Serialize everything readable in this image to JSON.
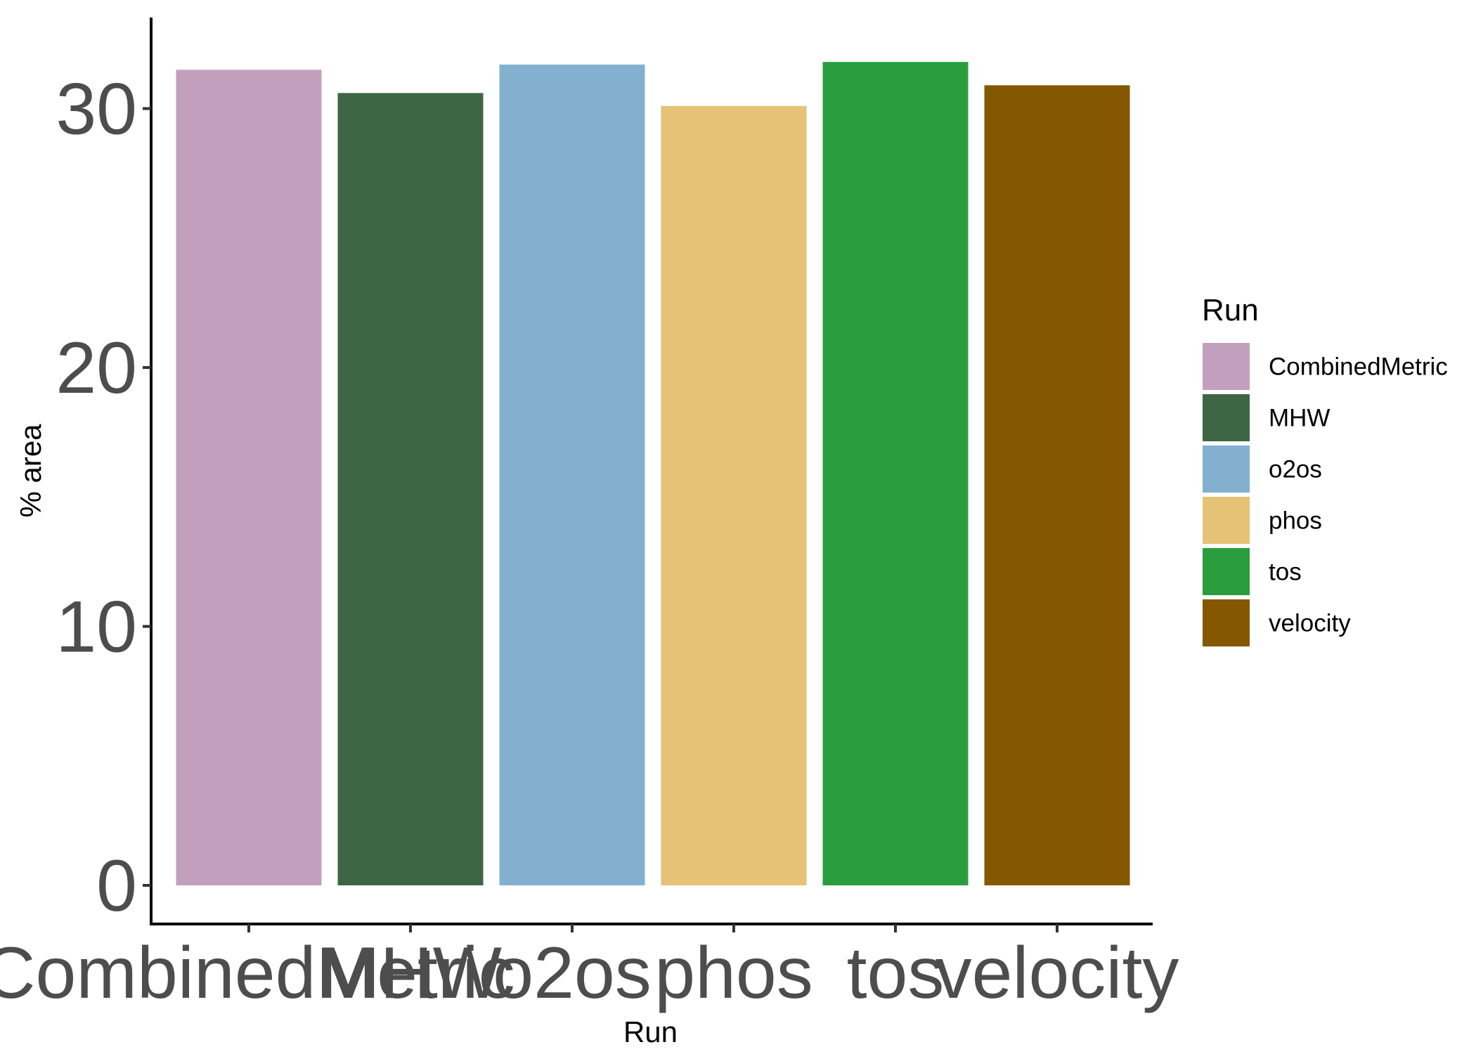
{
  "chart_data": {
    "type": "bar",
    "title": "",
    "xlabel": "Run",
    "ylabel": "% area",
    "categories": [
      "CombinedMetric",
      "MHW",
      "o2os",
      "phos",
      "tos",
      "velocity"
    ],
    "values": [
      31.5,
      30.6,
      31.7,
      30.1,
      31.8,
      30.9
    ],
    "colors": [
      "#c2a0bd",
      "#3d6645",
      "#83b0cf",
      "#e5c275",
      "#2a9e3e",
      "#855800"
    ],
    "ylim": [
      0,
      33
    ],
    "yticks": [
      0,
      10,
      20,
      30
    ],
    "grid": false,
    "legend": {
      "title": "Run",
      "position": "right",
      "entries": [
        "CombinedMetric",
        "MHW",
        "o2os",
        "phos",
        "tos",
        "velocity"
      ]
    }
  }
}
